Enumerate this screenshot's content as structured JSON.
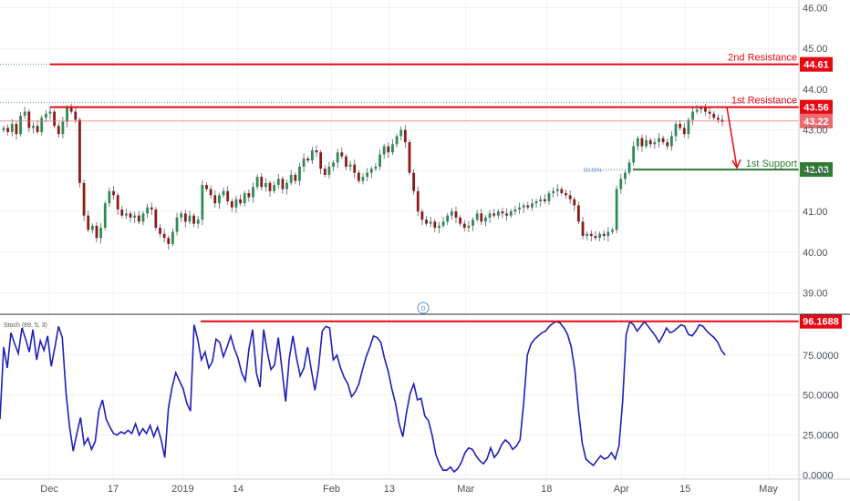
{
  "chart_data": [
    {
      "type": "candlestick",
      "price_axis": {
        "ticks": [
          "46.00",
          "45.00",
          "44.00",
          "43.00",
          "42.00",
          "41.00",
          "40.00",
          "39.00"
        ],
        "tick_values": [
          46,
          45,
          44,
          43,
          42,
          41,
          40,
          39
        ],
        "ylim": [
          38.5,
          46.1
        ]
      },
      "levels": [
        {
          "label": "2nd Resistance",
          "value": 44.61,
          "value_label": "44.61",
          "color": "#e50914"
        },
        {
          "label": "1st Resistance",
          "value": 43.56,
          "value_label": "43.56",
          "color": "#e50914"
        },
        {
          "label": "",
          "value": 43.22,
          "value_label": "43.22",
          "color": "#ef6a6f"
        },
        {
          "label": "1st Support",
          "value": 42.03,
          "value_label": "42.03",
          "color": "#2e7d32"
        }
      ],
      "fib_label": "50.00%",
      "marker": "D",
      "price_series": [
        43.05,
        42.95,
        43.15,
        42.9,
        43.35,
        43.45,
        43.05,
        43.1,
        42.95,
        43.3,
        43.4,
        43.45,
        43.1,
        42.9,
        43.2,
        43.55,
        43.45,
        43.25,
        41.7,
        40.9,
        40.55,
        40.65,
        40.35,
        40.6,
        41.2,
        41.5,
        41.4,
        41.05,
        40.9,
        40.95,
        40.85,
        40.9,
        40.75,
        40.95,
        41.1,
        41.05,
        40.6,
        40.45,
        40.35,
        40.2,
        40.5,
        40.85,
        40.95,
        40.75,
        40.9,
        40.7,
        40.8,
        41.65,
        41.55,
        41.4,
        41.2,
        41.4,
        41.5,
        41.25,
        41.1,
        41.3,
        41.2,
        41.45,
        41.35,
        41.6,
        41.85,
        41.6,
        41.7,
        41.5,
        41.65,
        41.8,
        41.55,
        41.7,
        41.9,
        41.75,
        42.1,
        42.3,
        42.25,
        42.5,
        42.45,
        42.05,
        41.9,
        42.1,
        42.2,
        42.45,
        42.35,
        42.1,
        42.15,
        41.95,
        41.75,
        41.85,
        41.95,
        42.05,
        42.1,
        42.4,
        42.6,
        42.45,
        42.65,
        42.85,
        43.0,
        42.7,
        41.95,
        41.5,
        41.0,
        40.8,
        40.7,
        40.75,
        40.6,
        40.65,
        40.75,
        40.9,
        41.0,
        40.85,
        40.7,
        40.6,
        40.65,
        40.8,
        40.95,
        40.75,
        40.85,
        40.95,
        40.9,
        41.0,
        40.95,
        40.9,
        41.0,
        41.05,
        41.1,
        41.15,
        41.1,
        41.2,
        41.25,
        41.3,
        41.25,
        41.45,
        41.5,
        41.55,
        41.45,
        41.4,
        41.3,
        41.15,
        40.75,
        40.4,
        40.45,
        40.4,
        40.35,
        40.45,
        40.4,
        40.5,
        40.55,
        41.55,
        41.8,
        41.95,
        42.2,
        42.6,
        42.8,
        42.6,
        42.75,
        42.65,
        42.7,
        42.8,
        42.7,
        42.6,
        42.85,
        43.15,
        43.05,
        42.9,
        43.25,
        43.45,
        43.5,
        43.55,
        43.45,
        43.4,
        43.3,
        43.25,
        43.2
      ],
      "projection": {
        "from": 43.56,
        "to": 42.03
      }
    },
    {
      "type": "line",
      "indicator": "Stoch (89, 5, 3)",
      "axis": {
        "ticks": [
          "75.0000",
          "50.0000",
          "25.0000",
          "0.0000"
        ],
        "tick_values": [
          75,
          50,
          25,
          0
        ],
        "ylim": [
          -2,
          100
        ]
      },
      "level": {
        "value": 96.1688,
        "value_label": "96.1688",
        "color": "#e50914"
      },
      "values": [
        35,
        80,
        67,
        89,
        82,
        76,
        92,
        85,
        77,
        91,
        72,
        84,
        78,
        87,
        68,
        80,
        93,
        86,
        52,
        30,
        15,
        26,
        36,
        19,
        23,
        16,
        21,
        40,
        47,
        35,
        30,
        26,
        25,
        27,
        26,
        28,
        26,
        32,
        25,
        29,
        26,
        31,
        24,
        30,
        22,
        11,
        42,
        55,
        64,
        59,
        54,
        45,
        40,
        94,
        85,
        72,
        77,
        67,
        71,
        85,
        83,
        74,
        80,
        87,
        79,
        73,
        64,
        59,
        79,
        91,
        64,
        55,
        91,
        77,
        66,
        69,
        86,
        66,
        46,
        73,
        87,
        73,
        62,
        67,
        80,
        66,
        53,
        67,
        90,
        93,
        92,
        72,
        75,
        67,
        61,
        57,
        49,
        52,
        57,
        66,
        74,
        80,
        87,
        86,
        83,
        73,
        65,
        54,
        45,
        32,
        24,
        39,
        51,
        57,
        47,
        48,
        37,
        34,
        25,
        13,
        7,
        3,
        3,
        5,
        2,
        4,
        8,
        14,
        17,
        16,
        12,
        9,
        7,
        10,
        17,
        11,
        14,
        19,
        22,
        20,
        16,
        18,
        22,
        45,
        75,
        82,
        85,
        87,
        89,
        90,
        93,
        95,
        96,
        95,
        92,
        88,
        80,
        65,
        40,
        20,
        10,
        8,
        6,
        9,
        12,
        10,
        11,
        14,
        10,
        18,
        45,
        88,
        96,
        94,
        90,
        93,
        96,
        93,
        90,
        87,
        83,
        87,
        92,
        89,
        90,
        92,
        94,
        93,
        88,
        87,
        90,
        94,
        93,
        90,
        88,
        86,
        83,
        78,
        75
      ]
    }
  ],
  "time_axis": {
    "labels": [
      "Dec",
      "17",
      "2019",
      "14",
      "Feb",
      "13",
      "Mar",
      "18",
      "Apr",
      "15",
      "May"
    ],
    "positions": [
      0.058,
      0.133,
      0.215,
      0.28,
      0.39,
      0.458,
      0.548,
      0.643,
      0.731,
      0.806,
      0.904
    ]
  }
}
